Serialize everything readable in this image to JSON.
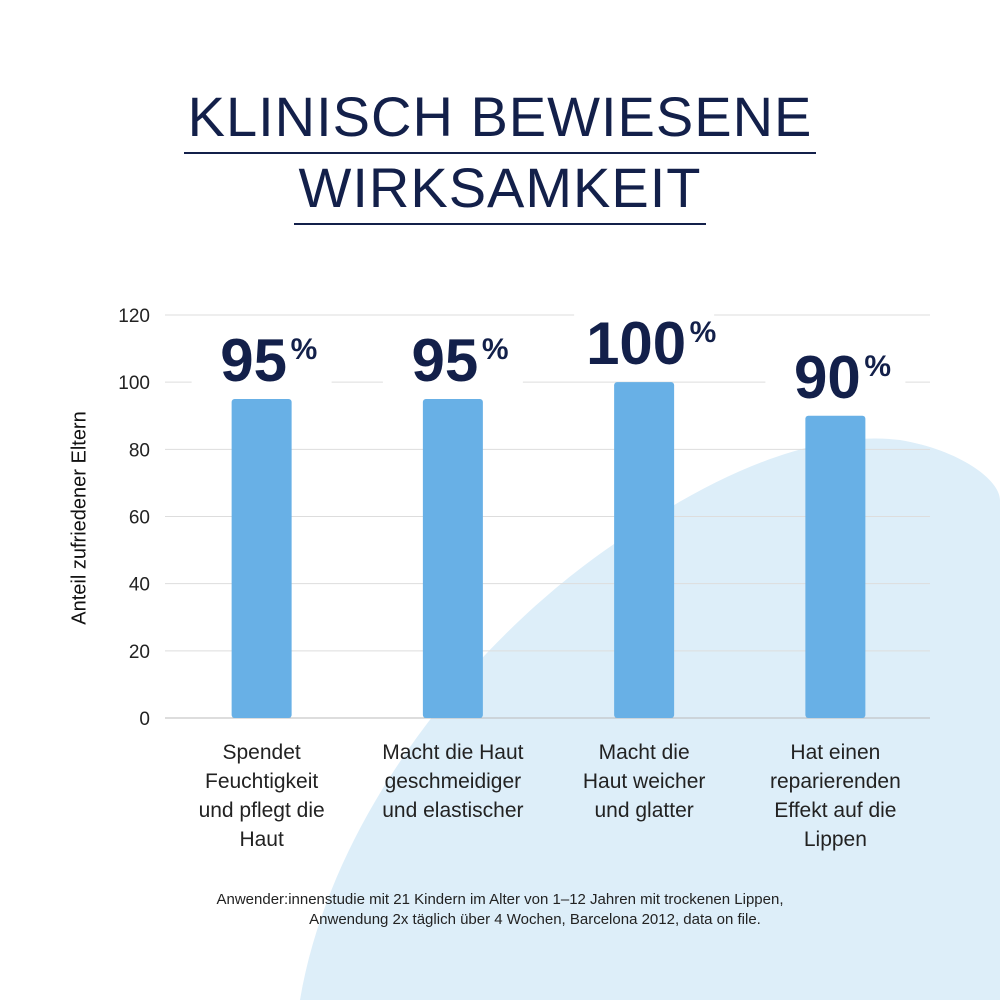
{
  "title_line1": "KLINISCH BEWIESENE",
  "title_line2": "WIRKSAMKEIT",
  "colors": {
    "bar": "#68b0e6",
    "text": "#13204a",
    "background_shape": "#ddeef9"
  },
  "chart_data": {
    "type": "bar",
    "ylabel": "Anteil zufriedener Eltern",
    "ylim": [
      0,
      120
    ],
    "yticks": [
      0,
      20,
      40,
      60,
      80,
      100,
      120
    ],
    "grid": true,
    "categories": [
      "Spendet Feuchtigkeit und pflegt die Haut",
      "Macht die Haut geschmeidiger und elastischer",
      "Macht die Haut weicher und glatter",
      "Hat einen reparierenden Effekt auf die Lippen"
    ],
    "values": [
      95,
      95,
      100,
      90
    ],
    "data_labels": [
      "95",
      "95",
      "100",
      "90"
    ],
    "unit": "%"
  },
  "category_lines": [
    [
      "Spendet",
      "Feuchtigkeit",
      "und pflegt die",
      "Haut"
    ],
    [
      "Macht die Haut",
      "geschmeidiger",
      "und elastischer"
    ],
    [
      "Macht die",
      "Haut weicher",
      "und glatter"
    ],
    [
      "Hat einen",
      "reparierenden",
      "Effekt auf die",
      "Lippen"
    ]
  ],
  "footnote_line1": "Anwender:innenstudie mit 21 Kindern im Alter von 1–12 Jahren mit trockenen Lippen,",
  "footnote_line2": "Anwendung 2x täglich über 4 Wochen, Barcelona 2012, data on file."
}
